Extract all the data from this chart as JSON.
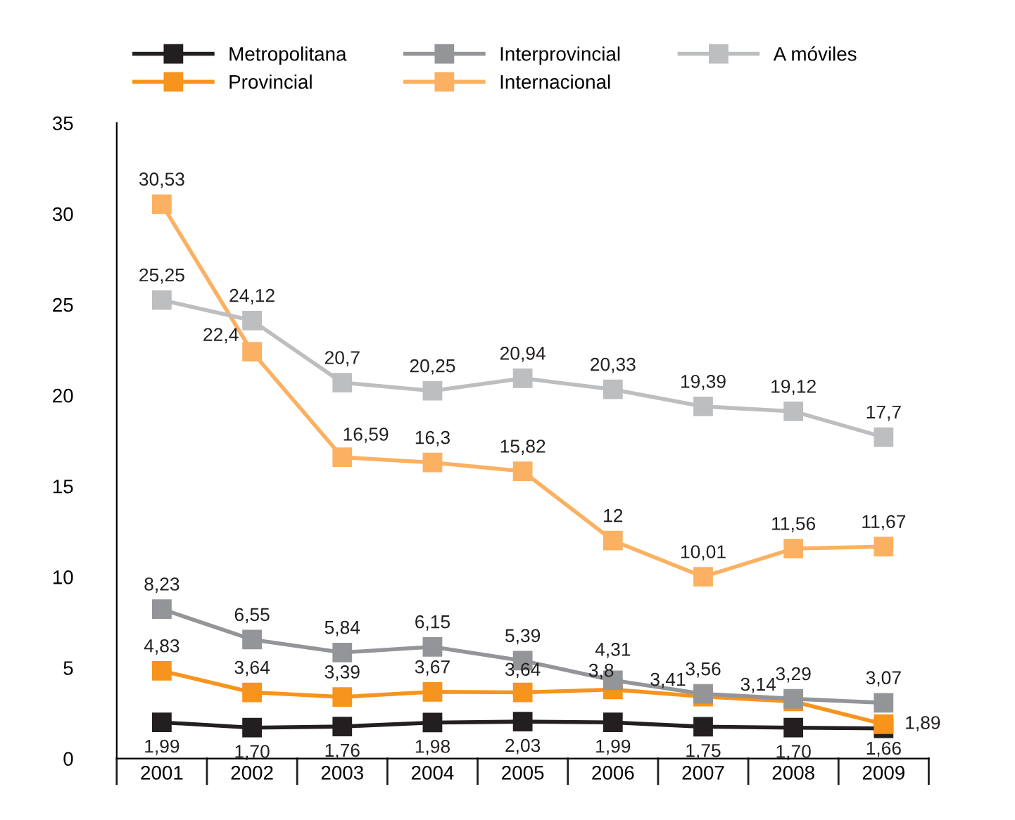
{
  "chart_data": {
    "type": "line",
    "categories": [
      "2001",
      "2002",
      "2003",
      "2004",
      "2005",
      "2006",
      "2007",
      "2008",
      "2009"
    ],
    "ylim": [
      0,
      35
    ],
    "yticks": [
      0,
      5,
      10,
      15,
      20,
      25,
      30,
      35
    ],
    "grid": false,
    "legend": "top",
    "marker": "square",
    "line_style": "solid",
    "series": [
      {
        "name": "Metropolitana",
        "color": "#231f20",
        "values": [
          1.99,
          1.7,
          1.76,
          1.98,
          2.03,
          1.99,
          1.75,
          1.7,
          1.66
        ],
        "value_labels": [
          "1,99",
          "1,70",
          "1,76",
          "1,98",
          "2,03",
          "1,99",
          "1,75",
          "1,70",
          "1,66"
        ]
      },
      {
        "name": "Provincial",
        "color": "#f7941d",
        "values": [
          4.83,
          3.64,
          3.39,
          3.67,
          3.64,
          3.8,
          3.41,
          3.14,
          1.89
        ],
        "value_labels": [
          "4,83",
          "3,64",
          "3,39",
          "3,67",
          "3,64",
          "3,8",
          "3,41",
          "3,14",
          "1,89"
        ]
      },
      {
        "name": "Interprovincial",
        "color": "#939598",
        "values": [
          8.23,
          6.55,
          5.84,
          6.15,
          5.39,
          4.31,
          3.56,
          3.29,
          3.07
        ],
        "value_labels": [
          "8,23",
          "6,55",
          "5,84",
          "6,15",
          "5,39",
          "4,31",
          "3,56",
          "3,29",
          "3,07"
        ]
      },
      {
        "name": "Internacional",
        "color": "#fbb161",
        "values": [
          30.53,
          22.4,
          16.59,
          16.3,
          15.82,
          12,
          10.01,
          11.56,
          11.67
        ],
        "value_labels": [
          "30,53",
          "22,4",
          "16,59",
          "16,3",
          "15,82",
          "12",
          "10,01",
          "11,56",
          "11,67"
        ]
      },
      {
        "name": "A móviles",
        "color": "#bcbec0",
        "values": [
          25.25,
          24.12,
          20.7,
          20.25,
          20.94,
          20.33,
          19.39,
          19.12,
          17.7
        ],
        "value_labels": [
          "25,25",
          "24,12",
          "20,7",
          "20,25",
          "20,94",
          "20,33",
          "19,39",
          "19,12",
          "17,7"
        ]
      }
    ]
  }
}
